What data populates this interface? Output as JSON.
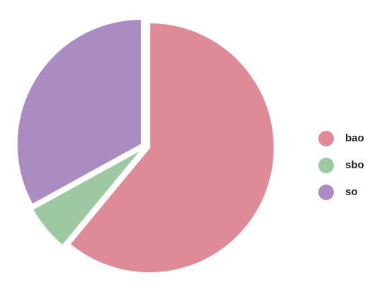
{
  "chart_data": {
    "type": "pie",
    "categories": [
      "bao",
      "sbo",
      "so"
    ],
    "values": [
      61,
      6,
      33
    ],
    "colors": [
      "#de8a97",
      "#9dc8a2",
      "#aa8bc2"
    ],
    "legend": "right"
  }
}
